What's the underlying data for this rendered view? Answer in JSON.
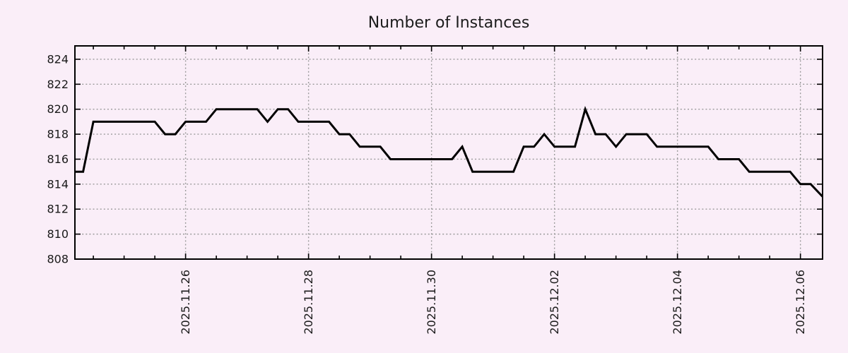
{
  "chart_data": {
    "type": "line",
    "title": "Number of Instances",
    "background_color": "#faeef8",
    "line_color": "#000000",
    "grid_color": "#9a9a9a",
    "grid": true,
    "legend": "none",
    "ylim": [
      808,
      825.07
    ],
    "y_ticks": [
      808,
      810,
      812,
      814,
      816,
      818,
      820,
      822,
      824
    ],
    "x_epoch_label": "2025.11.26",
    "x_units": "days relative to 2025.11.26 00:00",
    "xlim_days": [
      -1.8,
      10.36
    ],
    "x_ticks": [
      {
        "label": "2025.11.26",
        "t": 0
      },
      {
        "label": "2025.11.28",
        "t": 2
      },
      {
        "label": "2025.11.30",
        "t": 4
      },
      {
        "label": "2025.12.02",
        "t": 6
      },
      {
        "label": "2025.12.04",
        "t": 8
      },
      {
        "label": "2025.12.06",
        "t": 10
      }
    ],
    "minor_tick_interval_days": 0.5,
    "points": [
      [
        -1.8,
        815
      ],
      [
        -1.667,
        815
      ],
      [
        -1.5,
        819
      ],
      [
        -0.5,
        819
      ],
      [
        -0.333,
        818
      ],
      [
        -0.167,
        818
      ],
      [
        0,
        819
      ],
      [
        0.333,
        819
      ],
      [
        0.5,
        820
      ],
      [
        1.167,
        820
      ],
      [
        1.333,
        819
      ],
      [
        1.5,
        820
      ],
      [
        1.667,
        820
      ],
      [
        1.833,
        819
      ],
      [
        2.333,
        819
      ],
      [
        2.5,
        818
      ],
      [
        2.667,
        818
      ],
      [
        2.833,
        817
      ],
      [
        3.167,
        817
      ],
      [
        3.333,
        816
      ],
      [
        4.333,
        816
      ],
      [
        4.5,
        817
      ],
      [
        4.667,
        815
      ],
      [
        5.333,
        815
      ],
      [
        5.5,
        817
      ],
      [
        5.667,
        817
      ],
      [
        5.833,
        818
      ],
      [
        6.0,
        817
      ],
      [
        6.333,
        817
      ],
      [
        6.5,
        820
      ],
      [
        6.667,
        818
      ],
      [
        6.833,
        818
      ],
      [
        7.0,
        817
      ],
      [
        7.167,
        818
      ],
      [
        7.5,
        818
      ],
      [
        7.667,
        817
      ],
      [
        8.5,
        817
      ],
      [
        8.667,
        816
      ],
      [
        9.0,
        816
      ],
      [
        9.167,
        815
      ],
      [
        9.833,
        815
      ],
      [
        10.0,
        814
      ],
      [
        10.167,
        814
      ],
      [
        10.36,
        813
      ]
    ]
  }
}
